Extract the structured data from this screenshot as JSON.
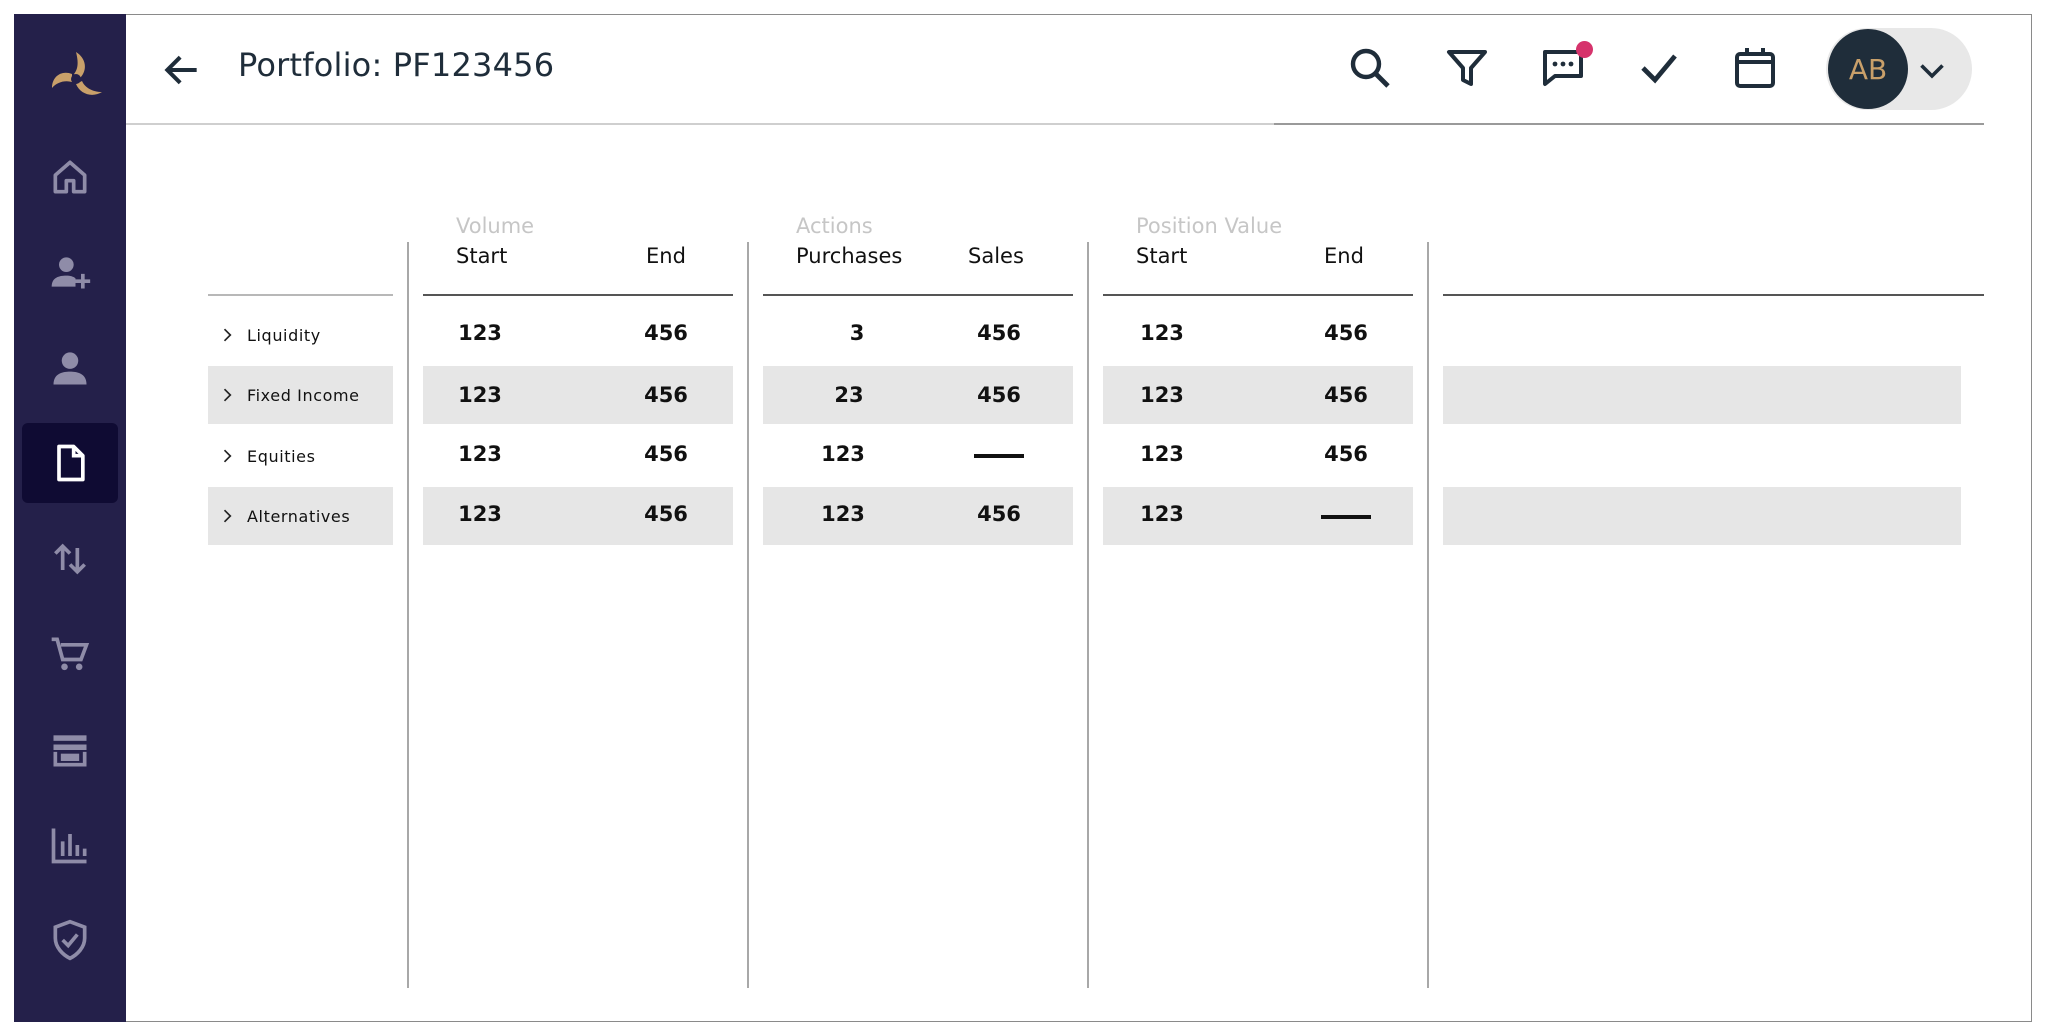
{
  "app": {
    "brand_color": "#24204a",
    "accent_color": "#c9a06a",
    "notification_color": "#d6336c"
  },
  "sidebar": {
    "logo_icon": "pinwheel-logo-icon",
    "items": [
      {
        "name": "home",
        "icon": "home-icon",
        "active": false
      },
      {
        "name": "add-user",
        "icon": "add-person-icon",
        "active": false
      },
      {
        "name": "user",
        "icon": "person-icon",
        "active": false
      },
      {
        "name": "documents",
        "icon": "document-icon",
        "active": true
      },
      {
        "name": "transactions",
        "icon": "swap-vertical-icon",
        "active": false
      },
      {
        "name": "cart",
        "icon": "cart-icon",
        "active": false
      },
      {
        "name": "store",
        "icon": "store-icon",
        "active": false
      },
      {
        "name": "analytics",
        "icon": "bar-chart-icon",
        "active": false
      },
      {
        "name": "security",
        "icon": "shield-check-icon",
        "active": false
      }
    ]
  },
  "header": {
    "title": "Portfolio: PF123456",
    "toolbar": [
      "search-icon",
      "filter-icon",
      "chat-icon",
      "check-icon",
      "calendar-icon"
    ],
    "user_initials": "AB",
    "has_notification": true
  },
  "table": {
    "groups": [
      {
        "label": "Volume",
        "columns": [
          "Start",
          "End"
        ]
      },
      {
        "label": "Actions",
        "columns": [
          "Purchases",
          "Sales"
        ]
      },
      {
        "label": "Position Value",
        "columns": [
          "Start",
          "End"
        ]
      }
    ],
    "rows": [
      {
        "label": "Liquidity",
        "values": [
          "123",
          "456",
          "3",
          "456",
          "123",
          "456"
        ]
      },
      {
        "label": "Fixed Income",
        "values": [
          "123",
          "456",
          "23",
          "456",
          "123",
          "456"
        ]
      },
      {
        "label": "Equities",
        "values": [
          "123",
          "456",
          "123",
          "—",
          "123",
          "456"
        ]
      },
      {
        "label": "Alternatives",
        "values": [
          "123",
          "456",
          "123",
          "456",
          "123",
          "—"
        ]
      }
    ]
  }
}
